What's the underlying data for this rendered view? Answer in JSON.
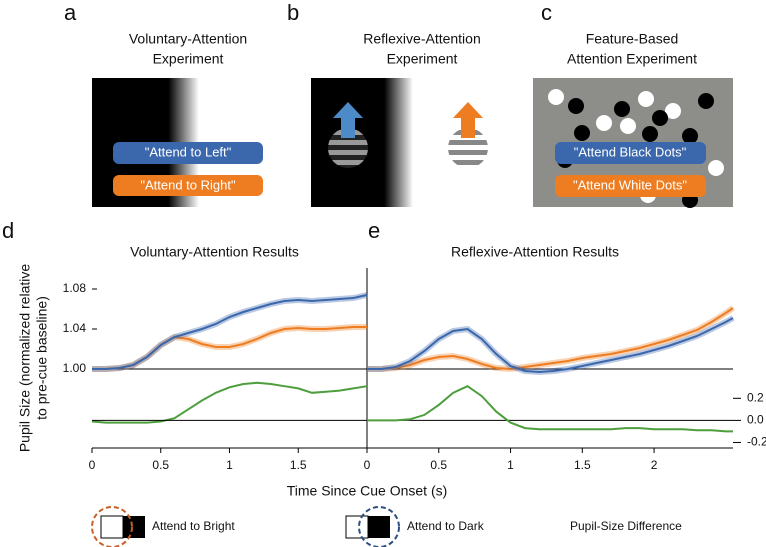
{
  "panels": [
    {
      "letter": "a",
      "title_lines": [
        "Voluntary-Attention",
        "Experiment"
      ],
      "labels": [
        "\"Attend to Left\"",
        "\"Attend to Right\""
      ]
    },
    {
      "letter": "b",
      "title_lines": [
        "Reflexive-Attention",
        "Experiment"
      ]
    },
    {
      "letter": "c",
      "title_lines": [
        "Feature-Based",
        "Attention Experiment"
      ],
      "labels": [
        "\"Attend Black Dots\"",
        "\"Attend White Dots\""
      ]
    }
  ],
  "ylabel_lines": [
    "Pupil Size (normalized relative",
    "to pre-cue baseline)"
  ],
  "xlabel": "Time Since Cue Onset (s)",
  "chart_data": [
    {
      "type": "line",
      "letter": "d",
      "title": "Voluntary-Attention Results",
      "x": [
        0,
        0.1,
        0.2,
        0.3,
        0.4,
        0.5,
        0.6,
        0.7,
        0.8,
        0.9,
        1.0,
        1.1,
        1.2,
        1.3,
        1.4,
        1.5,
        1.6,
        1.7,
        1.8,
        1.9,
        2.0
      ],
      "xlim": [
        0,
        2
      ],
      "xticks": [
        0,
        0.5,
        1,
        1.5
      ],
      "ylim": [
        0.921,
        1.101
      ],
      "yticks": [
        {
          "value": 1,
          "label": "1.00"
        },
        1.04,
        1.08
      ],
      "y2lim": [
        -0.25,
        1.38
      ],
      "series": [
        {
          "name": "Attend to Bright",
          "color": "#ee7d22",
          "values": [
            1.0,
            1.0,
            1.001,
            1.004,
            1.012,
            1.024,
            1.032,
            1.03,
            1.025,
            1.022,
            1.022,
            1.025,
            1.03,
            1.036,
            1.04,
            1.041,
            1.04,
            1.04,
            1.041,
            1.042,
            1.042
          ]
        },
        {
          "name": "Attend to Dark",
          "color": "#3b67ad",
          "values": [
            1.0,
            1.0,
            1.001,
            1.004,
            1.012,
            1.024,
            1.032,
            1.036,
            1.04,
            1.045,
            1.052,
            1.057,
            1.061,
            1.065,
            1.068,
            1.069,
            1.068,
            1.069,
            1.07,
            1.071,
            1.074
          ]
        },
        {
          "name": "Pupil-Size Difference",
          "color": "#4d9e3d",
          "axis": "y2",
          "values": [
            -0.01,
            -0.02,
            -0.02,
            -0.02,
            -0.02,
            -0.01,
            0.02,
            0.1,
            0.18,
            0.25,
            0.3,
            0.33,
            0.34,
            0.33,
            0.31,
            0.29,
            0.25,
            0.26,
            0.27,
            0.29,
            0.31
          ]
        }
      ]
    },
    {
      "type": "line",
      "letter": "e",
      "title": "Reflexive-Attention Results",
      "x": [
        0,
        0.1,
        0.2,
        0.3,
        0.4,
        0.5,
        0.6,
        0.7,
        0.8,
        0.9,
        1.0,
        1.1,
        1.2,
        1.3,
        1.4,
        1.5,
        1.6,
        1.7,
        1.8,
        1.9,
        2.0,
        2.1,
        2.2,
        2.3,
        2.4,
        2.5,
        2.55
      ],
      "xlim": [
        0,
        2.55
      ],
      "xticks": [
        0,
        0.5,
        1,
        1.5,
        2
      ],
      "ylim": [
        0.921,
        1.101
      ],
      "y2lim": [
        -0.25,
        1.38
      ],
      "y2ticks": [
        0.2,
        {
          "value": 0,
          "label": "0.0"
        },
        -0.2
      ],
      "series": [
        {
          "color": "#ee7d22",
          "values": [
            1.0,
            1.0,
            1.001,
            1.004,
            1.009,
            1.012,
            1.013,
            1.01,
            1.005,
            1.001,
            1.0,
            1.002,
            1.004,
            1.006,
            1.008,
            1.011,
            1.013,
            1.015,
            1.018,
            1.021,
            1.025,
            1.029,
            1.034,
            1.039,
            1.047,
            1.056,
            1.061
          ]
        },
        {
          "color": "#3b67ad",
          "values": [
            1.0,
            1.0,
            1.002,
            1.008,
            1.018,
            1.03,
            1.038,
            1.04,
            1.03,
            1.015,
            1.003,
            0.998,
            0.997,
            0.998,
            1.0,
            1.003,
            1.006,
            1.009,
            1.012,
            1.015,
            1.019,
            1.023,
            1.028,
            1.033,
            1.04,
            1.047,
            1.051
          ]
        },
        {
          "color": "#4d9e3d",
          "axis": "y2",
          "values": [
            0.0,
            0.0,
            0.0,
            0.01,
            0.05,
            0.14,
            0.25,
            0.31,
            0.22,
            0.08,
            -0.02,
            -0.07,
            -0.08,
            -0.08,
            -0.08,
            -0.08,
            -0.08,
            -0.08,
            -0.07,
            -0.07,
            -0.08,
            -0.08,
            -0.08,
            -0.09,
            -0.09,
            -0.1,
            -0.1
          ]
        }
      ]
    }
  ]
}
